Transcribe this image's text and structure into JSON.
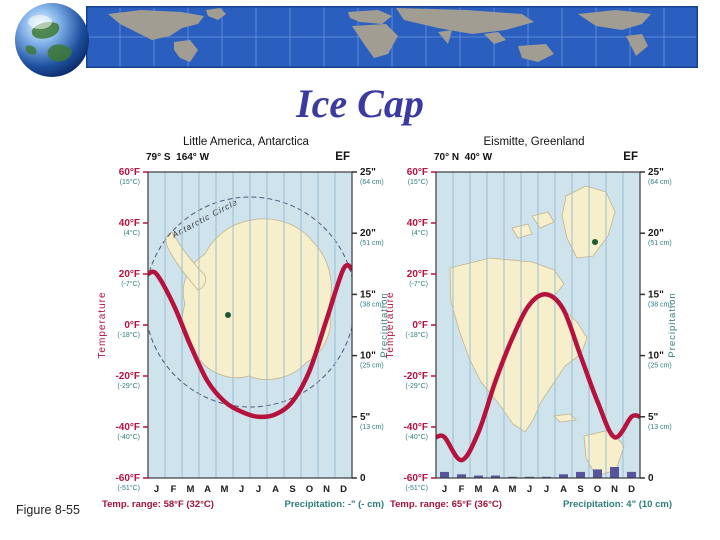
{
  "slide": {
    "title": "Ice Cap",
    "figure_label": "Figure 8-55"
  },
  "axes": {
    "temp_axis_label": "Temperature",
    "precip_axis_label": "Precipitation",
    "months": [
      "J",
      "F",
      "M",
      "A",
      "M",
      "J",
      "J",
      "A",
      "S",
      "O",
      "N",
      "D"
    ],
    "temp_ticks": [
      {
        "f": "60°F",
        "c": "(15°C)",
        "value": 60
      },
      {
        "f": "40°F",
        "c": "(4°C)",
        "value": 40
      },
      {
        "f": "20°F",
        "c": "(-7°C)",
        "value": 20
      },
      {
        "f": "0°F",
        "c": "(-18°C)",
        "value": 0
      },
      {
        "f": "-20°F",
        "c": "(-29°C)",
        "value": -20
      },
      {
        "f": "-40°F",
        "c": "(-40°C)",
        "value": -40
      },
      {
        "f": "-60°F",
        "c": "(-51°C)",
        "value": -60
      }
    ],
    "precip_ticks": [
      {
        "in": "25\"",
        "cm": "(64 cm)",
        "value": 25
      },
      {
        "in": "20\"",
        "cm": "(51 cm)",
        "value": 20
      },
      {
        "in": "15\"",
        "cm": "(38 cm)",
        "value": 15
      },
      {
        "in": "10\"",
        "cm": "(25 cm)",
        "value": 10
      },
      {
        "in": "5\"",
        "cm": "(13 cm)",
        "value": 5
      },
      {
        "in": "0",
        "cm": "",
        "value": 0
      }
    ],
    "temp_range_f": [
      -60,
      60
    ],
    "precip_range_in": [
      0,
      25
    ]
  },
  "chart_data": [
    {
      "type": "line",
      "station": "Little America, Antarctica",
      "coordinates": "79° S  164° W",
      "climate_class": "EF",
      "map": "antarctica",
      "map_label": "Antarctic Circle",
      "temp_f": [
        20,
        8,
        -8,
        -22,
        -30,
        -34,
        -36,
        -35,
        -30,
        -18,
        2,
        22
      ],
      "precip_in": [
        0,
        0,
        0,
        0,
        0,
        0,
        0,
        0,
        0,
        0,
        0,
        0
      ],
      "caption_temp": "Temp. range: 58°F (32°C)",
      "caption_precip": "Precipitation: -\" (- cm)"
    },
    {
      "type": "line",
      "station": "Eismitte, Greenland",
      "coordinates": "70° N  40° W",
      "climate_class": "EF",
      "map": "north-america",
      "map_label": "",
      "temp_f": [
        -44,
        -53,
        -42,
        -22,
        -5,
        8,
        12,
        6,
        -12,
        -30,
        -44,
        -36
      ],
      "precip_in": [
        0.5,
        0.3,
        0.2,
        0.2,
        0.1,
        0.1,
        0.1,
        0.3,
        0.5,
        0.7,
        0.9,
        0.5
      ],
      "caption_temp": "Temp. range: 65°F (36°C)",
      "caption_precip": "Precipitation: 4\" (10 cm)"
    }
  ],
  "colors": {
    "temperature": "#b5123e",
    "celsius": "#2e7d7d",
    "precip_bar": "#55549c",
    "plot_bg": "#cfe3ed",
    "land": "#f7efcc",
    "title": "#3a3aa0"
  }
}
